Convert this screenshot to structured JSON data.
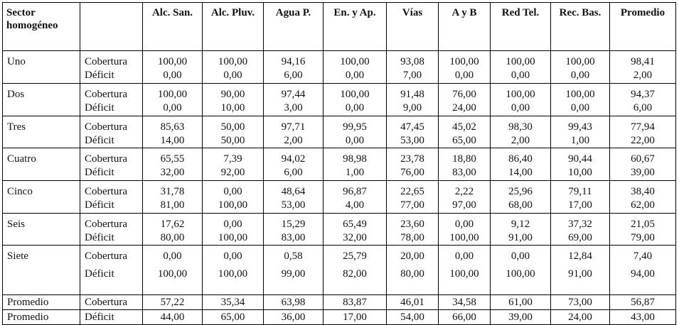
{
  "headers": [
    "Sector homogéneo",
    "",
    "Alc. San.",
    "Alc. Pluv.",
    "Agua P.",
    "En. y Ap.",
    "Vías",
    "A y B",
    "Red Tel.",
    "Rec. Bas.",
    "Promedio"
  ],
  "sector_header_lines": [
    "Sector",
    "homogéneo"
  ],
  "row_types": [
    "Cobertura",
    "Déficit"
  ],
  "sectors": [
    {
      "name": "Uno",
      "cobertura": [
        "100,00",
        "100,00",
        "94,16",
        "100,00",
        "93,08",
        "100,00",
        "100,00",
        "100,00",
        "98,41"
      ],
      "deficit": [
        "0,00",
        "0,00",
        "6,00",
        "0,00",
        "7,00",
        "0,00",
        "0,00",
        "0,00",
        "2,00"
      ]
    },
    {
      "name": "Dos",
      "cobertura": [
        "100,00",
        "90,00",
        "97,44",
        "100,00",
        "91,48",
        "76,00",
        "100,00",
        "100,00",
        "94,37"
      ],
      "deficit": [
        "0,00",
        "10,00",
        "3,00",
        "0,00",
        "9,00",
        "24,00",
        "0,00",
        "0,00",
        "6,00"
      ]
    },
    {
      "name": "Tres",
      "cobertura": [
        "85,63",
        "50,00",
        "97,71",
        "99,95",
        "47,45",
        "45,02",
        "98,30",
        "99,43",
        "77,94"
      ],
      "deficit": [
        "14,00",
        "50,00",
        "2,00",
        "0,00",
        "53,00",
        "65,00",
        "2,00",
        "1,00",
        "22,00"
      ]
    },
    {
      "name": "Cuatro",
      "cobertura": [
        "65,55",
        "7,39",
        "94,02",
        "98,98",
        "23,78",
        "18,80",
        "86,40",
        "90,44",
        "60,67"
      ],
      "deficit": [
        "32,00",
        "92,00",
        "6,00",
        "1,00",
        "76,00",
        "83,00",
        "14,00",
        "10,00",
        "39,00"
      ]
    },
    {
      "name": "Cinco",
      "cobertura": [
        "31,78",
        "0,00",
        "48,64",
        "96,87",
        "22,65",
        "2,22",
        "25,96",
        "79,11",
        "38,40"
      ],
      "deficit": [
        "81,00",
        "100,00",
        "53,00",
        "4,00",
        "77,00",
        "97,00",
        "68,00",
        "17,00",
        "62,00"
      ]
    },
    {
      "name": "Seis",
      "cobertura": [
        "17,62",
        "0,00",
        "15,29",
        "65,49",
        "23,60",
        "0,00",
        "9,12",
        "37,32",
        "21,05"
      ],
      "deficit": [
        "80,00",
        "100,00",
        "83,00",
        "32,00",
        "78,00",
        "100,00",
        "91,00",
        "69,00",
        "79,00"
      ]
    },
    {
      "name": "Siete",
      "cobertura": [
        "0,00",
        "0,00",
        "0,58",
        "25,79",
        "20,00",
        "0,00",
        "0,00",
        "12,84",
        "7,40"
      ],
      "deficit": [
        "100,00",
        "100,00",
        "99,00",
        "82,00",
        "80,00",
        "100,00",
        "100,00",
        "91,00",
        "94,00"
      ]
    }
  ],
  "promedio_rows": [
    {
      "label": "Promedio",
      "type": "Cobertura",
      "values": [
        "57,22",
        "35,34",
        "63,98",
        "83,87",
        "46,01",
        "34,58",
        "61,00",
        "73,00",
        "56,87"
      ]
    },
    {
      "label": "Promedio",
      "type": "Déficit",
      "values": [
        "44,00",
        "65,00",
        "36,00",
        "17,00",
        "54,00",
        "66,00",
        "39,00",
        "24,00",
        "43,00"
      ]
    }
  ]
}
